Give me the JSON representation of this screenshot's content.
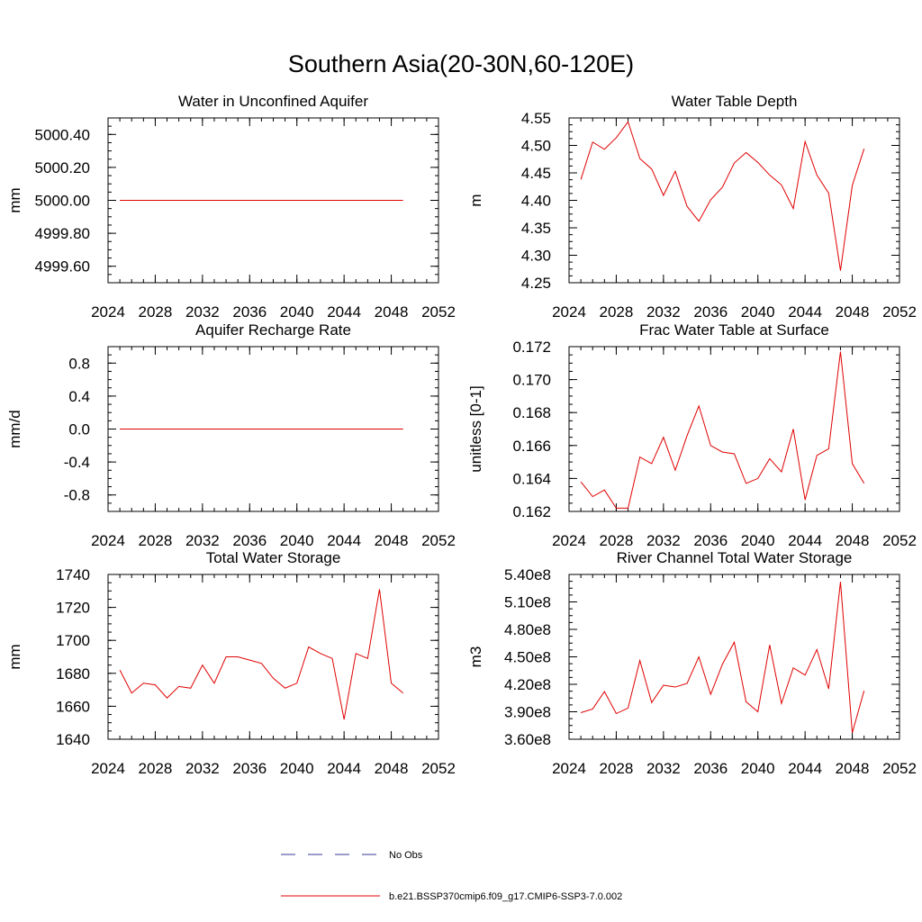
{
  "figure": {
    "title": "Southern Asia(20-30N,60-120E)",
    "legend": [
      {
        "label": "No Obs",
        "color": "#3a3a9a",
        "dash": true
      },
      {
        "label": "b.e21.BSSP370cmip6.f09_g17.CMIP6-SSP3-7.0.002",
        "color": "#e00000",
        "dash": false
      }
    ]
  },
  "chart_data": [
    {
      "type": "line",
      "title": "Water in Unconfined Aquifer",
      "ylabel": "mm",
      "xlim": [
        2024,
        2052
      ],
      "ylim": [
        4999.5,
        5000.5
      ],
      "xticks": [
        2024,
        2028,
        2032,
        2036,
        2040,
        2044,
        2048,
        2052
      ],
      "xtick_labels": [
        "2024",
        "2028",
        "2032",
        "2036",
        "2040",
        "2044",
        "2048",
        "2052"
      ],
      "yticks": [
        4999.6,
        4999.8,
        5000.0,
        5000.2,
        5000.4
      ],
      "ytick_labels": [
        "4999.60",
        "4999.80",
        "5000.00",
        "5000.20",
        "5000.40"
      ],
      "series": [
        {
          "color": "#e00000",
          "x": [
            2025,
            2026,
            2027,
            2028,
            2029,
            2030,
            2031,
            2032,
            2033,
            2034,
            2035,
            2036,
            2037,
            2038,
            2039,
            2040,
            2041,
            2042,
            2043,
            2044,
            2045,
            2046,
            2047,
            2048,
            2049
          ],
          "y": [
            5000,
            5000,
            5000,
            5000,
            5000,
            5000,
            5000,
            5000,
            5000,
            5000,
            5000,
            5000,
            5000,
            5000,
            5000,
            5000,
            5000,
            5000,
            5000,
            5000,
            5000,
            5000,
            5000,
            5000,
            5000
          ]
        }
      ]
    },
    {
      "type": "line",
      "title": "Water Table Depth",
      "ylabel": "m",
      "xlim": [
        2024,
        2052
      ],
      "ylim": [
        4.25,
        4.55
      ],
      "xticks": [
        2024,
        2028,
        2032,
        2036,
        2040,
        2044,
        2048,
        2052
      ],
      "xtick_labels": [
        "2024",
        "2028",
        "2032",
        "2036",
        "2040",
        "2044",
        "2048",
        "2052"
      ],
      "yticks": [
        4.25,
        4.3,
        4.35,
        4.4,
        4.45,
        4.5,
        4.55
      ],
      "ytick_labels": [
        "4.25",
        "4.30",
        "4.35",
        "4.40",
        "4.45",
        "4.50",
        "4.55"
      ],
      "series": [
        {
          "color": "#e00000",
          "x": [
            2025,
            2026,
            2027,
            2028,
            2029,
            2030,
            2031,
            2032,
            2033,
            2034,
            2035,
            2036,
            2037,
            2038,
            2039,
            2040,
            2041,
            2042,
            2043,
            2044,
            2045,
            2046,
            2047,
            2048,
            2049
          ],
          "y": [
            4.438,
            4.506,
            4.493,
            4.514,
            4.543,
            4.476,
            4.457,
            4.409,
            4.453,
            4.389,
            4.362,
            4.401,
            4.424,
            4.468,
            4.487,
            4.469,
            4.446,
            4.428,
            4.385,
            4.507,
            4.446,
            4.413,
            4.272,
            4.427,
            4.494
          ]
        }
      ]
    },
    {
      "type": "line",
      "title": "Aquifer Recharge Rate",
      "ylabel": "mm/d",
      "xlim": [
        2024,
        2052
      ],
      "ylim": [
        -1.0,
        1.0
      ],
      "xticks": [
        2024,
        2028,
        2032,
        2036,
        2040,
        2044,
        2048,
        2052
      ],
      "xtick_labels": [
        "2024",
        "2028",
        "2032",
        "2036",
        "2040",
        "2044",
        "2048",
        "2052"
      ],
      "yticks": [
        -0.8,
        -0.4,
        0.0,
        0.4,
        0.8
      ],
      "ytick_labels": [
        "-0.8",
        "-0.4",
        "0.0",
        "0.4",
        "0.8"
      ],
      "series": [
        {
          "color": "#e00000",
          "x": [
            2025,
            2026,
            2027,
            2028,
            2029,
            2030,
            2031,
            2032,
            2033,
            2034,
            2035,
            2036,
            2037,
            2038,
            2039,
            2040,
            2041,
            2042,
            2043,
            2044,
            2045,
            2046,
            2047,
            2048,
            2049
          ],
          "y": [
            0,
            0,
            0,
            0,
            0,
            0,
            0,
            0,
            0,
            0,
            0,
            0,
            0,
            0,
            0,
            0,
            0,
            0,
            0,
            0,
            0,
            0,
            0,
            0,
            0
          ]
        }
      ]
    },
    {
      "type": "line",
      "title": "Frac Water Table at Surface",
      "ylabel": "unitless [0-1]",
      "xlim": [
        2024,
        2052
      ],
      "ylim": [
        0.162,
        0.172
      ],
      "xticks": [
        2024,
        2028,
        2032,
        2036,
        2040,
        2044,
        2048,
        2052
      ],
      "xtick_labels": [
        "2024",
        "2028",
        "2032",
        "2036",
        "2040",
        "2044",
        "2048",
        "2052"
      ],
      "yticks": [
        0.162,
        0.164,
        0.166,
        0.168,
        0.17,
        0.172
      ],
      "ytick_labels": [
        "0.162",
        "0.164",
        "0.166",
        "0.168",
        "0.170",
        "0.172"
      ],
      "series": [
        {
          "color": "#e00000",
          "x": [
            2025,
            2026,
            2027,
            2028,
            2029,
            2030,
            2031,
            2032,
            2033,
            2034,
            2035,
            2036,
            2037,
            2038,
            2039,
            2040,
            2041,
            2042,
            2043,
            2044,
            2045,
            2046,
            2047,
            2048,
            2049
          ],
          "y": [
            0.1638,
            0.1629,
            0.1633,
            0.1622,
            0.1622,
            0.1653,
            0.1649,
            0.1665,
            0.1645,
            0.1666,
            0.1684,
            0.166,
            0.1656,
            0.1655,
            0.1637,
            0.164,
            0.1652,
            0.1644,
            0.167,
            0.1627,
            0.1654,
            0.1658,
            0.1717,
            0.1649,
            0.1637
          ]
        }
      ]
    },
    {
      "type": "line",
      "title": "Total Water Storage",
      "ylabel": "mm",
      "xlim": [
        2024,
        2052
      ],
      "ylim": [
        1640,
        1740
      ],
      "xticks": [
        2024,
        2028,
        2032,
        2036,
        2040,
        2044,
        2048,
        2052
      ],
      "xtick_labels": [
        "2024",
        "2028",
        "2032",
        "2036",
        "2040",
        "2044",
        "2048",
        "2052"
      ],
      "yticks": [
        1640,
        1660,
        1680,
        1700,
        1720,
        1740
      ],
      "ytick_labels": [
        "1640",
        "1660",
        "1680",
        "1700",
        "1720",
        "1740"
      ],
      "series": [
        {
          "color": "#e00000",
          "x": [
            2025,
            2026,
            2027,
            2028,
            2029,
            2030,
            2031,
            2032,
            2033,
            2034,
            2035,
            2036,
            2037,
            2038,
            2039,
            2040,
            2041,
            2042,
            2043,
            2044,
            2045,
            2046,
            2047,
            2048,
            2049
          ],
          "y": [
            1682,
            1668,
            1674,
            1673,
            1665,
            1672,
            1671,
            1685,
            1674,
            1690,
            1690,
            1688,
            1686,
            1677,
            1671,
            1674,
            1696,
            1692,
            1689,
            1652,
            1692,
            1689,
            1731,
            1674,
            1668
          ]
        }
      ]
    },
    {
      "type": "line",
      "title": "River Channel Total Water Storage",
      "ylabel": "m3",
      "xlim": [
        2024,
        2052
      ],
      "ylim": [
        360000000,
        540000000
      ],
      "xticks": [
        2024,
        2028,
        2032,
        2036,
        2040,
        2044,
        2048,
        2052
      ],
      "xtick_labels": [
        "2024",
        "2028",
        "2032",
        "2036",
        "2040",
        "2044",
        "2048",
        "2052"
      ],
      "yticks": [
        360000000,
        390000000,
        420000000,
        450000000,
        480000000,
        510000000,
        540000000
      ],
      "ytick_labels": [
        "3.60e8",
        "3.90e8",
        "4.20e8",
        "4.50e8",
        "4.80e8",
        "5.10e8",
        "5.40e8"
      ],
      "series": [
        {
          "color": "#e00000",
          "x": [
            2025,
            2026,
            2027,
            2028,
            2029,
            2030,
            2031,
            2032,
            2033,
            2034,
            2035,
            2036,
            2037,
            2038,
            2039,
            2040,
            2041,
            2042,
            2043,
            2044,
            2045,
            2046,
            2047,
            2048,
            2049
          ],
          "y": [
            389000000,
            393000000,
            412000000,
            388000000,
            394000000,
            446000000,
            400000000,
            419000000,
            417000000,
            421000000,
            450000000,
            409000000,
            442000000,
            466000000,
            401000000,
            390000000,
            463000000,
            399000000,
            438000000,
            430000000,
            458000000,
            415000000,
            532000000,
            367000000,
            413000000
          ]
        }
      ]
    }
  ]
}
